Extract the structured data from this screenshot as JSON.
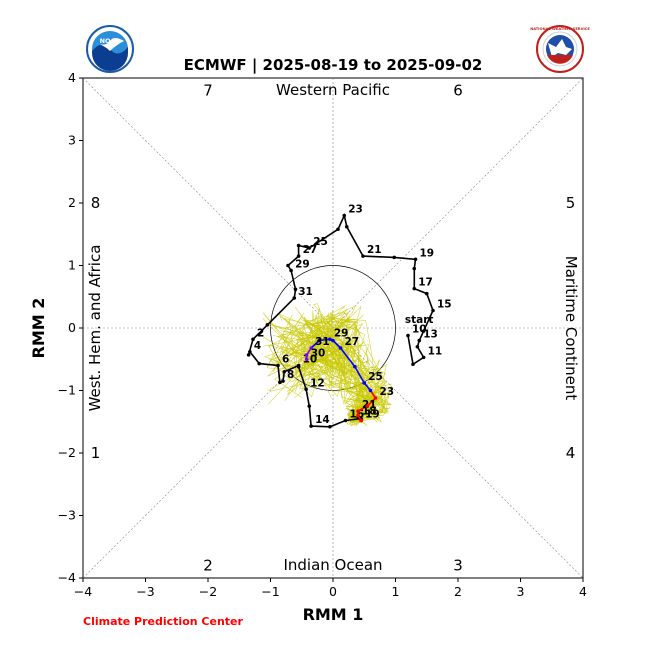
{
  "title": "ECMWF | 2025-08-19 to 2025-09-02",
  "credit": "Climate Prediction Center",
  "logos": {
    "left": "NOAA",
    "right_ring": "NATIONAL WEATHER SERVICE"
  },
  "colors": {
    "observed": "#000000",
    "forecast_early": "#ff0000",
    "forecast_mid": "#7f00ff",
    "forecast_late": "#0000ff",
    "ensemble": "#c8c800",
    "credit": "#ff0000"
  },
  "chart_data": {
    "type": "line",
    "xlabel": "RMM 1",
    "ylabel": "RMM 2",
    "xlim": [
      -4,
      4
    ],
    "ylim": [
      -4,
      4
    ],
    "xticks": [
      "−4",
      "−3",
      "−2",
      "−1",
      "0",
      "1",
      "2",
      "3",
      "4"
    ],
    "yticks": [
      "−4",
      "−3",
      "−2",
      "−1",
      "0",
      "1",
      "2",
      "3",
      "4"
    ],
    "grid": "diagonal phase lines and axes",
    "unit_circle_radius": 1,
    "regions": {
      "top": "Western Pacific",
      "bottom": "Indian Ocean",
      "left": "West. Hem. and Africa",
      "right": "Maritime Continent"
    },
    "phases": [
      {
        "label": "7",
        "x": -2,
        "y": 3.8
      },
      {
        "label": "6",
        "x": 2,
        "y": 3.8
      },
      {
        "label": "8",
        "x": -3.8,
        "y": 2
      },
      {
        "label": "5",
        "x": 3.8,
        "y": 2
      },
      {
        "label": "1",
        "x": -3.8,
        "y": -2
      },
      {
        "label": "4",
        "x": 3.8,
        "y": -2
      },
      {
        "label": "2",
        "x": -2,
        "y": -3.8
      },
      {
        "label": "3",
        "x": 2,
        "y": -3.8
      }
    ],
    "start_label": {
      "text": "start",
      "x": 1.15,
      "y": 0.08
    },
    "observed": [
      {
        "x": 1.2,
        "y": -0.12,
        "label": "10"
      },
      {
        "x": 1.28,
        "y": -0.58
      },
      {
        "x": 1.45,
        "y": -0.47,
        "label": "11"
      },
      {
        "x": 1.35,
        "y": -0.3
      },
      {
        "x": 1.38,
        "y": -0.2,
        "label": "13"
      },
      {
        "x": 1.45,
        "y": -0.05
      },
      {
        "x": 1.6,
        "y": 0.28,
        "label": "15"
      },
      {
        "x": 1.5,
        "y": 0.55
      },
      {
        "x": 1.3,
        "y": 0.63,
        "label": "17"
      },
      {
        "x": 1.3,
        "y": 0.95
      },
      {
        "x": 1.32,
        "y": 1.1,
        "label": "19"
      },
      {
        "x": 0.98,
        "y": 1.13
      },
      {
        "x": 0.48,
        "y": 1.15,
        "label": "21"
      },
      {
        "x": 0.22,
        "y": 1.62
      },
      {
        "x": 0.18,
        "y": 1.8,
        "label": "23"
      },
      {
        "x": 0.08,
        "y": 1.58
      },
      {
        "x": -0.38,
        "y": 1.28,
        "label": "25"
      },
      {
        "x": -0.55,
        "y": 1.32
      },
      {
        "x": -0.55,
        "y": 1.15,
        "label": "27"
      },
      {
        "x": -0.72,
        "y": 1.0
      },
      {
        "x": -0.67,
        "y": 0.92,
        "label": "29"
      },
      {
        "x": -0.6,
        "y": 0.62
      },
      {
        "x": -0.62,
        "y": 0.48,
        "label": "31"
      },
      {
        "x": -1.05,
        "y": 0.05
      },
      {
        "x": -1.28,
        "y": -0.18,
        "label": "2"
      },
      {
        "x": -1.35,
        "y": -0.43
      },
      {
        "x": -1.33,
        "y": -0.38,
        "label": "4"
      },
      {
        "x": -1.18,
        "y": -0.57
      },
      {
        "x": -0.88,
        "y": -0.6,
        "label": "6"
      },
      {
        "x": -0.85,
        "y": -0.87
      },
      {
        "x": -0.8,
        "y": -0.85,
        "label": "8"
      },
      {
        "x": -0.78,
        "y": -0.7
      },
      {
        "x": -0.55,
        "y": -0.6,
        "label": "10"
      },
      {
        "x": -0.55,
        "y": -0.62
      },
      {
        "x": -0.43,
        "y": -0.98,
        "label": "12"
      },
      {
        "x": -0.38,
        "y": -1.25
      },
      {
        "x": -0.35,
        "y": -1.57,
        "label": "14"
      },
      {
        "x": -0.05,
        "y": -1.58
      },
      {
        "x": 0.2,
        "y": -1.48,
        "label": "16"
      },
      {
        "x": 0.45,
        "y": -1.45
      },
      {
        "x": 0.4,
        "y": -1.43,
        "label": "18"
      },
      {
        "x": 0.45,
        "y": -1.48
      }
    ],
    "forecast": [
      {
        "x": 0.45,
        "y": -1.48,
        "label": "19"
      },
      {
        "x": 0.4,
        "y": -1.4
      },
      {
        "x": 0.4,
        "y": -1.33,
        "label": "21"
      },
      {
        "x": 0.55,
        "y": -1.25
      },
      {
        "x": 0.68,
        "y": -1.12,
        "label": "23"
      },
      {
        "x": 0.6,
        "y": -1.0
      },
      {
        "x": 0.5,
        "y": -0.88,
        "label": "25"
      },
      {
        "x": 0.35,
        "y": -0.62
      },
      {
        "x": 0.12,
        "y": -0.32,
        "label": "27"
      },
      {
        "x": 0.0,
        "y": -0.2
      },
      {
        "x": -0.05,
        "y": -0.18,
        "label": "29"
      },
      {
        "x": -0.22,
        "y": -0.2
      },
      {
        "x": -0.35,
        "y": -0.32,
        "label": "31"
      },
      {
        "x": -0.42,
        "y": -0.43
      },
      {
        "x": -0.42,
        "y": -0.5,
        "label": "30"
      }
    ],
    "forecast_start_day": "19"
  }
}
